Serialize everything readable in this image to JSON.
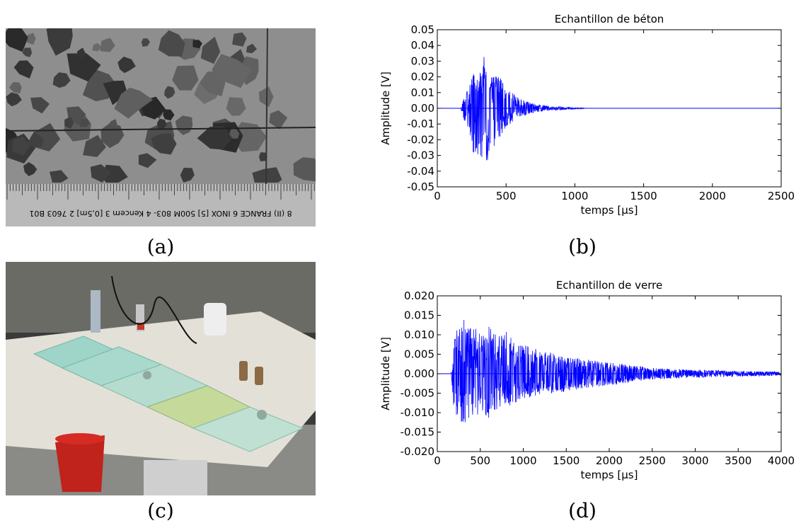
{
  "captions": {
    "a": "(a)",
    "b": "(b)",
    "c": "(c)",
    "d": "(d)"
  },
  "ruler_text": "8 (II) FRANCE 6 INOX [5] 500M 803- 4 Kencem 3 [0,5m] 2 7603 B01",
  "colors": {
    "signal": "#0000ff",
    "axis": "#000000",
    "background": "#ffffff"
  },
  "chart_data": [
    {
      "type": "line",
      "title": "Echantillon de béton",
      "xlabel": "temps [µs]",
      "ylabel": "Amplitude [V]",
      "xlim": [
        0,
        2500
      ],
      "ylim": [
        -0.05,
        0.05
      ],
      "xticks": [
        "0",
        "500",
        "1000",
        "1500",
        "2000",
        "2500"
      ],
      "yticks": [
        "0.05",
        "0.04",
        "0.03",
        "0.02",
        "0.01",
        "0.00",
        "-0.01",
        "-0.02",
        "-0.03",
        "-0.04",
        "-0.05"
      ],
      "grid": false,
      "series": [
        {
          "envelope_upper": {
            "x": [
              0,
              170,
              200,
              230,
              260,
              300,
              330,
              360,
              380,
              410,
              450,
              500,
              550,
              600,
              700,
              800,
              900,
              1000,
              1100,
              2500
            ],
            "y": [
              0,
              0,
              0.008,
              0.014,
              0.026,
              0.022,
              0.03,
              0.041,
              0.025,
              0.02,
              0.022,
              0.012,
              0.01,
              0.006,
              0.003,
              0.0015,
              0.001,
              0.0005,
              0,
              0
            ]
          },
          "envelope_lower": {
            "x": [
              0,
              170,
              200,
              230,
              260,
              300,
              330,
              360,
              380,
              410,
              450,
              500,
              550,
              600,
              700,
              800,
              900,
              1000,
              1100,
              2500
            ],
            "y": [
              0,
              0,
              -0.01,
              -0.018,
              -0.028,
              -0.03,
              -0.035,
              -0.04,
              -0.03,
              -0.025,
              -0.02,
              -0.012,
              -0.009,
              -0.006,
              -0.003,
              -0.0015,
              -0.001,
              -0.0005,
              0,
              0
            ]
          }
        }
      ]
    },
    {
      "type": "line",
      "title": "Echantillon de verre",
      "xlabel": "temps [µs]",
      "ylabel": "Amplitude [V]",
      "xlim": [
        0,
        4000
      ],
      "ylim": [
        -0.02,
        0.02
      ],
      "xticks": [
        "0",
        "500",
        "1000",
        "1500",
        "2000",
        "2500",
        "3000",
        "3500",
        "4000"
      ],
      "yticks": [
        "0.020",
        "0.015",
        "0.010",
        "0.005",
        "0.000",
        "-0.005",
        "-0.010",
        "-0.015",
        "-0.020"
      ],
      "grid": false,
      "series": [
        {
          "envelope_upper": {
            "x": [
              0,
              160,
              200,
              300,
              400,
              500,
              600,
              700,
              800,
              900,
              1000,
              1200,
              1500,
              1800,
              2000,
              2300,
              2500,
              2800,
              3000,
              3500,
              4000
            ],
            "y": [
              0,
              0,
              0.0105,
              0.014,
              0.0125,
              0.0105,
              0.0125,
              0.0095,
              0.0115,
              0.0075,
              0.0075,
              0.006,
              0.0045,
              0.0035,
              0.003,
              0.002,
              0.0015,
              0.0012,
              0.001,
              0.0007,
              0.0005
            ]
          },
          "envelope_lower": {
            "x": [
              0,
              160,
              200,
              300,
              400,
              500,
              600,
              700,
              800,
              900,
              1000,
              1200,
              1500,
              1800,
              2000,
              2300,
              2500,
              2800,
              3000,
              3500,
              4000
            ],
            "y": [
              0,
              0,
              -0.011,
              -0.013,
              -0.0115,
              -0.0105,
              -0.0115,
              -0.009,
              -0.009,
              -0.0075,
              -0.007,
              -0.0055,
              -0.0045,
              -0.0035,
              -0.003,
              -0.002,
              -0.0015,
              -0.0012,
              -0.001,
              -0.0007,
              -0.0005
            ]
          }
        }
      ]
    }
  ]
}
